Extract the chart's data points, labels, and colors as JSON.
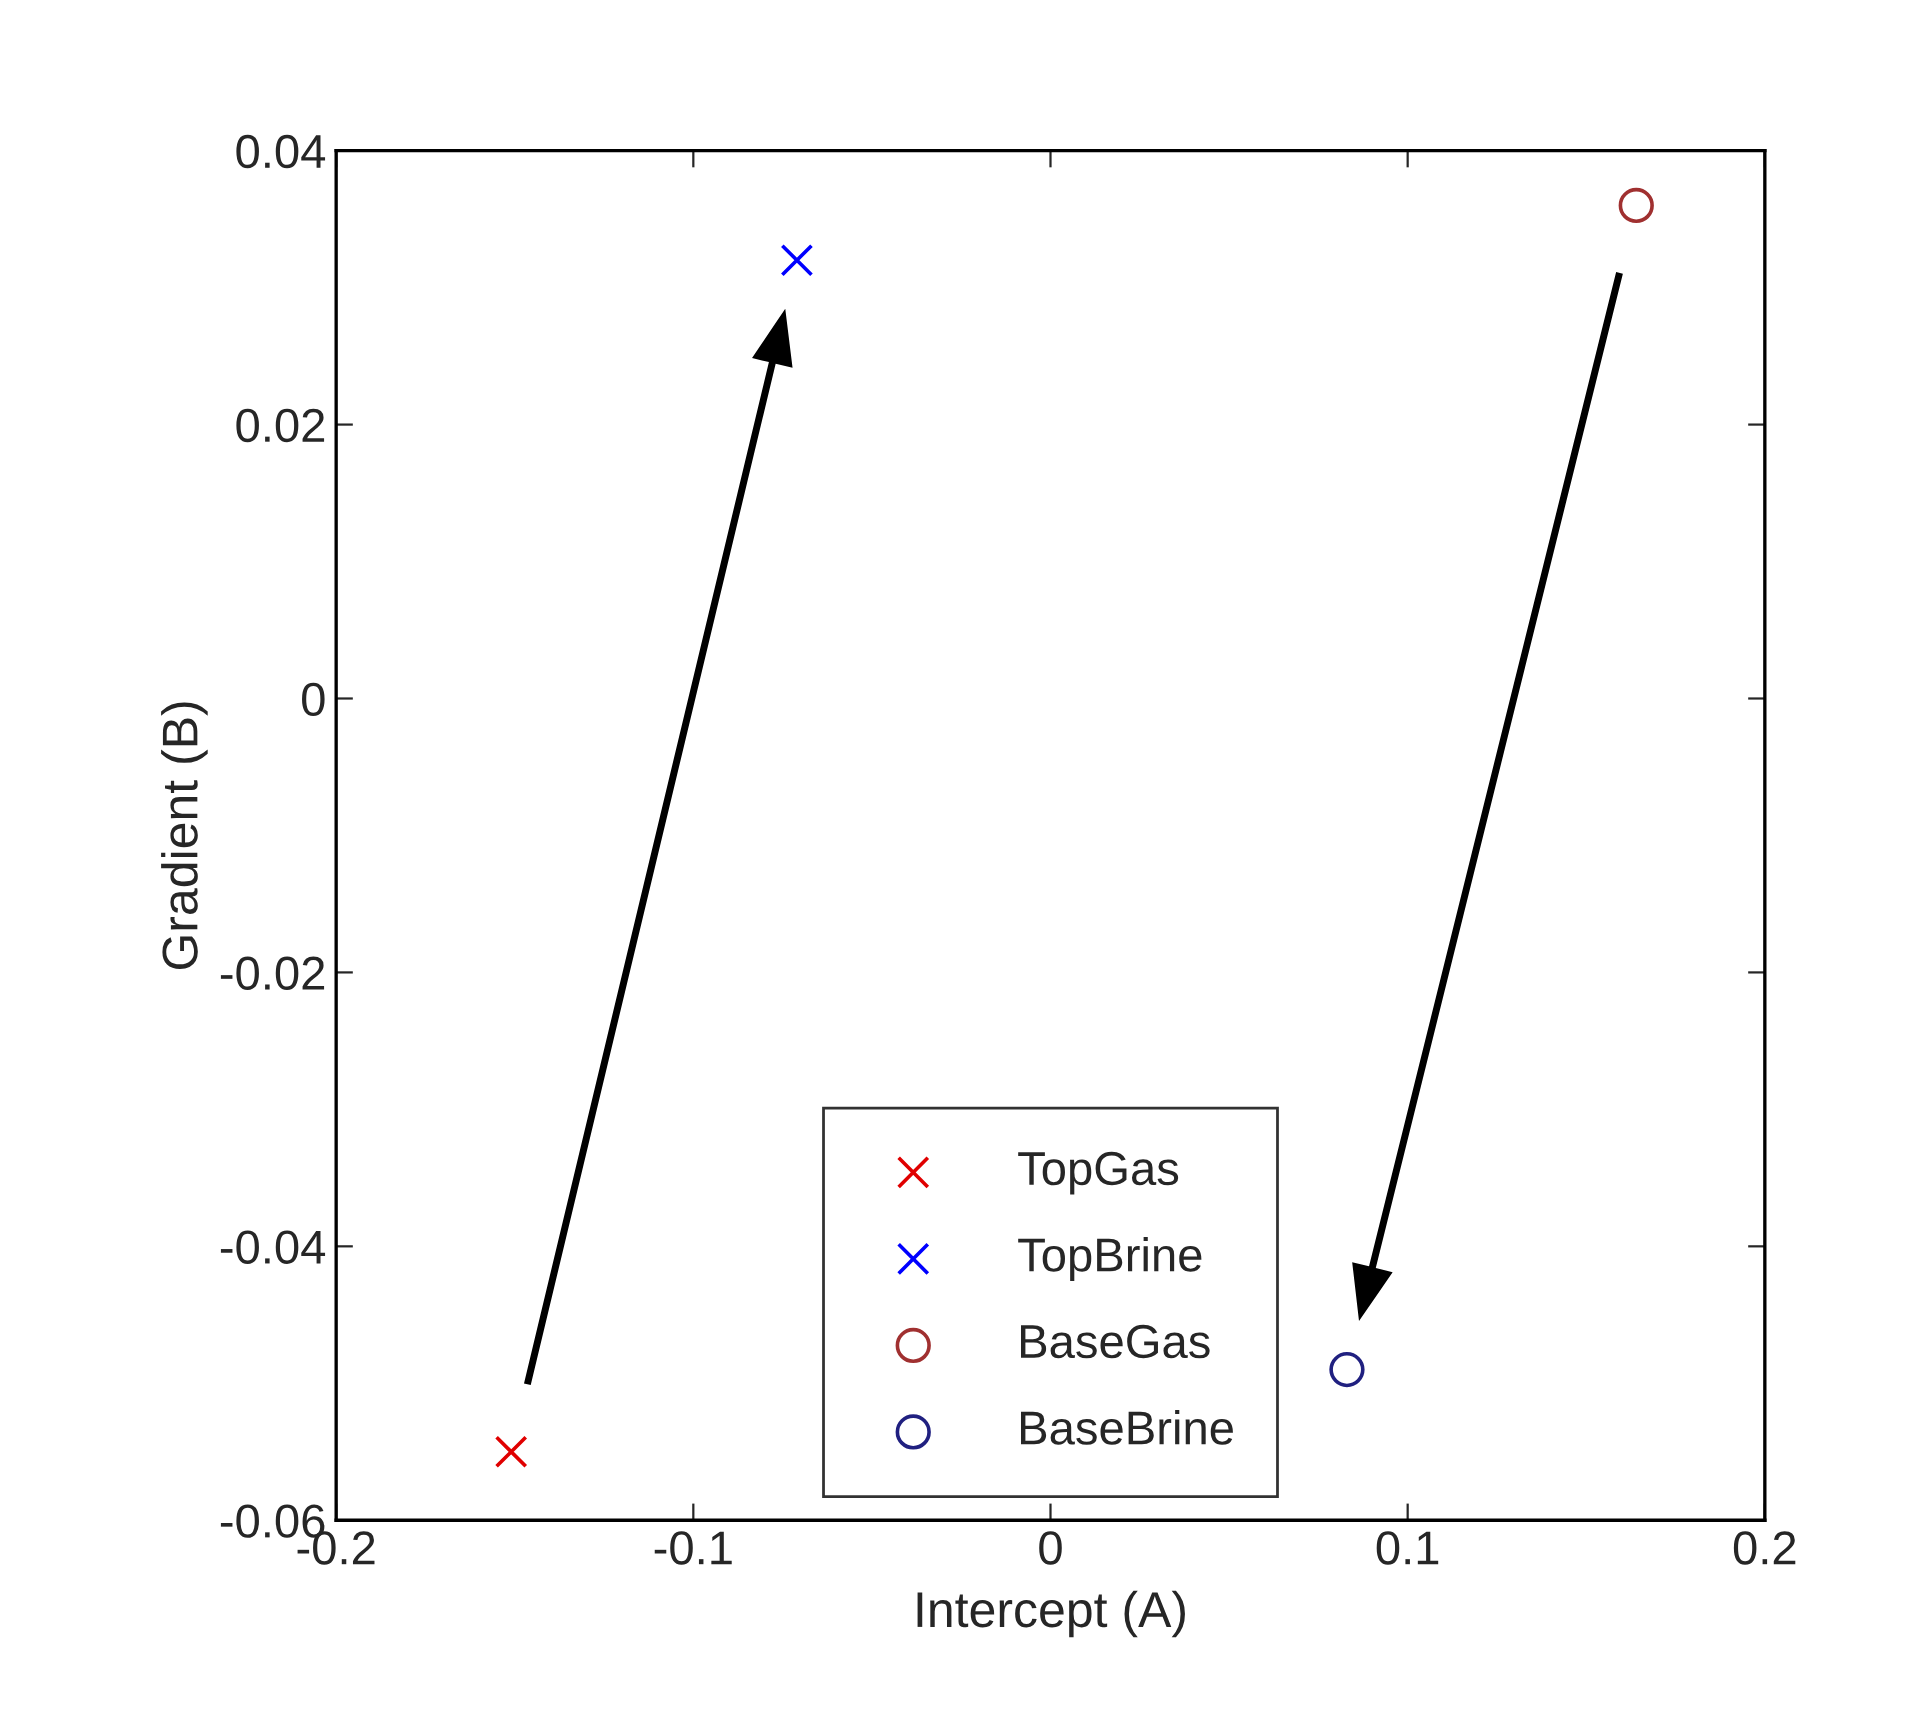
{
  "chart_data": {
    "type": "scatter",
    "xlabel": "Intercept (A)",
    "ylabel": "Gradient (B)",
    "xlim": [
      -0.2,
      0.2
    ],
    "xticks": [
      -0.2,
      -0.1,
      0,
      0.1,
      0.2
    ],
    "ylim": [
      -0.06,
      0.04
    ],
    "yticks": [
      -0.06,
      -0.04,
      -0.02,
      0,
      0.02,
      0.04
    ],
    "grid": false,
    "legend": "bottom",
    "series": [
      {
        "name": "TopGas",
        "color": "#e00000",
        "marker": "cross",
        "x": [
          -0.151
        ],
        "values": [
          -0.055
        ]
      },
      {
        "name": "TopBrine",
        "color": "#0000ff",
        "marker": "cross",
        "x": [
          -0.071
        ],
        "values": [
          0.032
        ]
      },
      {
        "name": "BaseGas",
        "color": "#a03030",
        "marker": "circle",
        "x": [
          0.164
        ],
        "values": [
          0.036
        ]
      },
      {
        "name": "BaseBrine",
        "color": "#202080",
        "marker": "circle",
        "x": [
          0.083
        ],
        "values": [
          -0.049
        ]
      }
    ]
  }
}
